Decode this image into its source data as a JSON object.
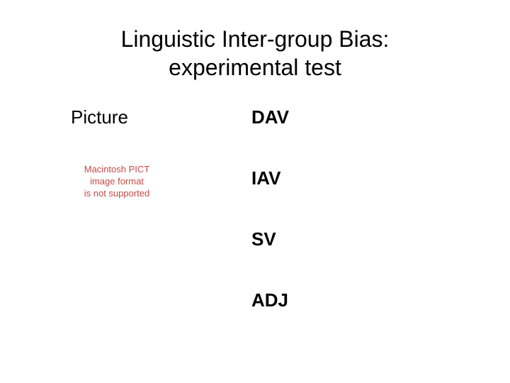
{
  "title": {
    "line1": "Linguistic Inter-group Bias:",
    "line2": "experimental test",
    "fontsize": 32,
    "color": "#000000"
  },
  "left": {
    "picture_label": "Picture",
    "placeholder": {
      "line1": "Macintosh PICT",
      "line2": "image format",
      "line3": "is not supported",
      "color": "#c84848",
      "fontsize": 13
    }
  },
  "categories": [
    {
      "label": "DAV"
    },
    {
      "label": "IAV"
    },
    {
      "label": "SV"
    },
    {
      "label": "ADJ"
    }
  ],
  "styling": {
    "background_color": "#ffffff",
    "label_fontsize": 26,
    "category_fontsize": 26,
    "category_fontweight": "bold",
    "text_color": "#000000",
    "category_spacing": 55
  }
}
